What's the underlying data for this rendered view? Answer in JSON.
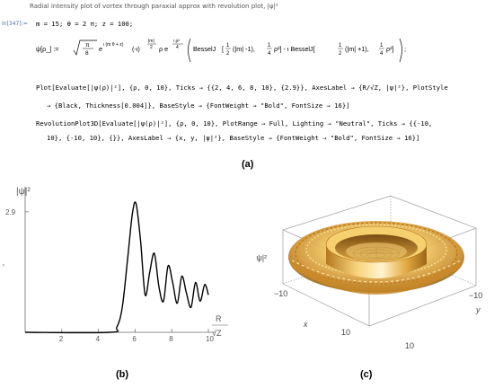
{
  "notebook": {
    "cell_title": "Radial intensity plot of vortex through paraxial approx with revolution plot, |ψ|²",
    "cell_label": "In[347]:=",
    "lines": [
      "m = 15; θ = 2 π; z = 100;",
      "ψ[ρ_] := √(π/8) e^(ι (mθ + z)) (-ι)^((|m|+1)/2) ρ e^(ι ρ²/4) (BesselJ[½(|m| - 1), ¼ρ²] - ι BesselJ[½(|m| + 1), ¼ρ²]);",
      "Plot[Evaluate[|ψ(ρ)|²], {ρ, 0, 10}, Ticks → {{2, 4, 6, 8, 10}, {2.9}}, AxesLabel → {R/√Z, |ψ|²}, PlotStyle",
      "→ {Black, Thickness[0.004]}, BaseStyle → {FontWeight → \"Bold\", FontSize → 16}]",
      "RevolutionPlot3D[Evaluate[|ψ(ρ)|²], {ρ, 0, 10}, PlotRange → Full, Lighting → \"Neutral\", Ticks → {{-10,",
      "10}, {-10, 10}, {}}, AxesLabel → {x, y, |ψ|²}, BaseStyle → {FontWeight → \"Bold\", FontSize → 16}]"
    ]
  },
  "labels": {
    "a": "(a)",
    "b": "(b)",
    "c": "(c)"
  },
  "chart_data": [
    {
      "type": "line",
      "xlabel_top": "R",
      "xlabel_bottom": "√Z",
      "ylabel": "|ψ|²",
      "xticks": [
        2,
        4,
        6,
        8,
        10
      ],
      "yticks": [
        2.9
      ],
      "xlim": [
        0,
        10
      ],
      "ylim": [
        0,
        3.2
      ],
      "series": [
        {
          "x": [
            0,
            4.6,
            5.0,
            5.3,
            5.6,
            5.85,
            6.05,
            6.3,
            6.55,
            6.8,
            7.05,
            7.3,
            7.55,
            7.8,
            8.05,
            8.3,
            8.55,
            8.8,
            9.05,
            9.3,
            9.55,
            9.8,
            10.0
          ],
          "y": [
            0,
            0.0,
            0.12,
            0.6,
            1.8,
            2.85,
            3.1,
            2.2,
            0.9,
            1.45,
            1.9,
            1.1,
            0.75,
            1.6,
            1.2,
            0.7,
            1.35,
            0.95,
            0.6,
            1.2,
            0.75,
            1.15,
            0.9
          ]
        }
      ]
    },
    {
      "type": "surface",
      "axis_labels": [
        "x",
        "y",
        "|ψ|²"
      ],
      "x_ticks": [
        -10,
        10
      ],
      "y_ticks": [
        -10,
        10
      ],
      "surface_color": "#e8b44a"
    }
  ]
}
